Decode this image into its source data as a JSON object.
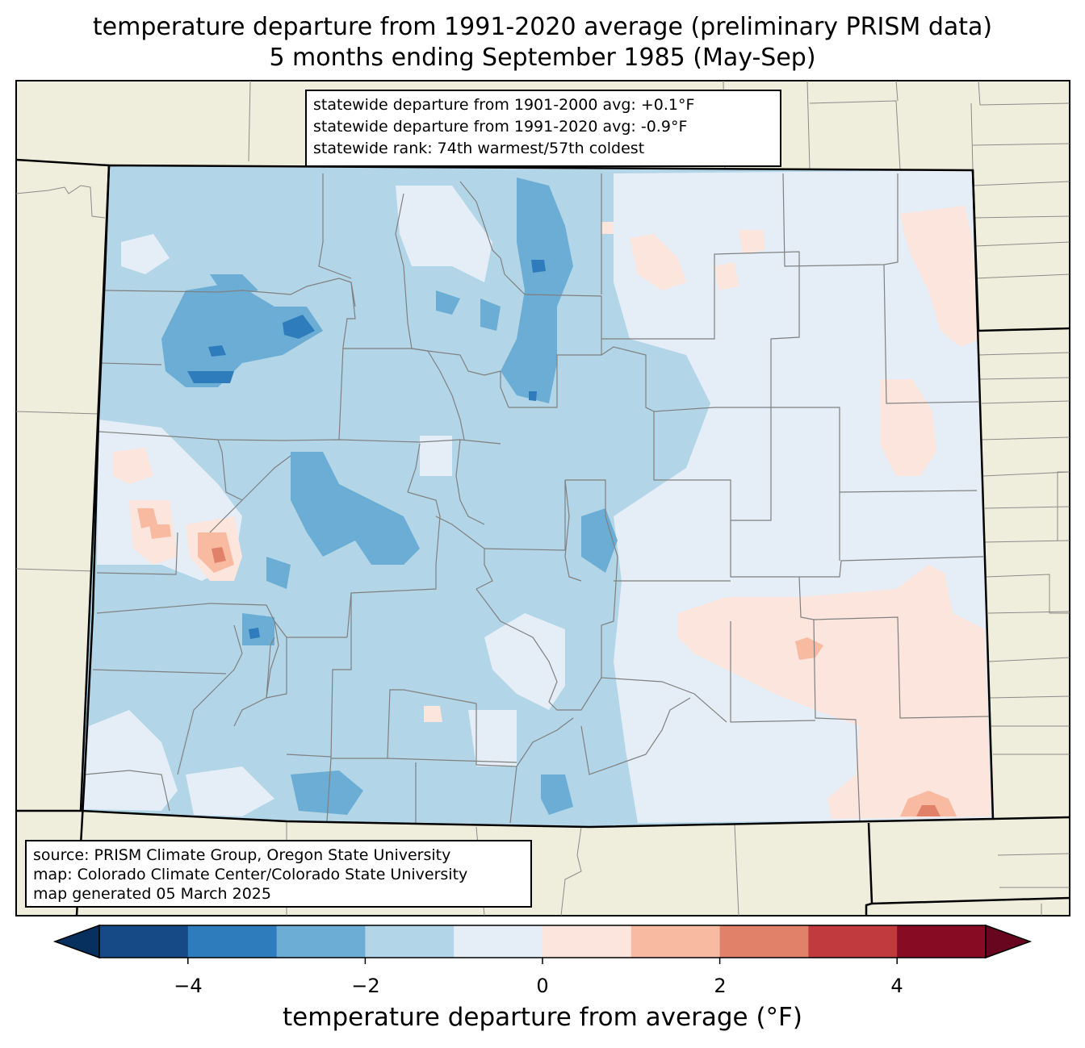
{
  "title_line1": "temperature departure from 1991-2020 average (preliminary PRISM data)",
  "title_line2": "5 months ending September 1985 (May-Sep)",
  "stats": {
    "line1": "statewide departure from 1901-2000 avg: +0.1°F",
    "line2": "statewide departure from 1991-2020 avg: -0.9°F",
    "line3": "statewide rank: 74th warmest/57th coldest"
  },
  "source": {
    "line1": "source: PRISM Climate Group, Oregon State University",
    "line2": "map: Colorado Climate Center/Colorado State University",
    "line3": "map generated 05 March 2025"
  },
  "colorbar": {
    "label": "temperature departure from average (°F)",
    "ticks": [
      "−4",
      "−2",
      "0",
      "2",
      "4"
    ],
    "bins": [
      -5,
      -4,
      -3,
      -2,
      -1,
      0,
      1,
      2,
      3,
      4,
      5
    ],
    "colors": [
      "#154a86",
      "#2e7cbb",
      "#6badd4",
      "#b2d5e7",
      "#e5eef6",
      "#fbe5dc",
      "#f8baa0",
      "#e2816a",
      "#c13a3d",
      "#870b22"
    ],
    "under_color": "#08305f",
    "over_color": "#680620"
  },
  "map_colors": {
    "land": "#efeedc",
    "state_border": "#000000",
    "county_border": "#808080"
  }
}
